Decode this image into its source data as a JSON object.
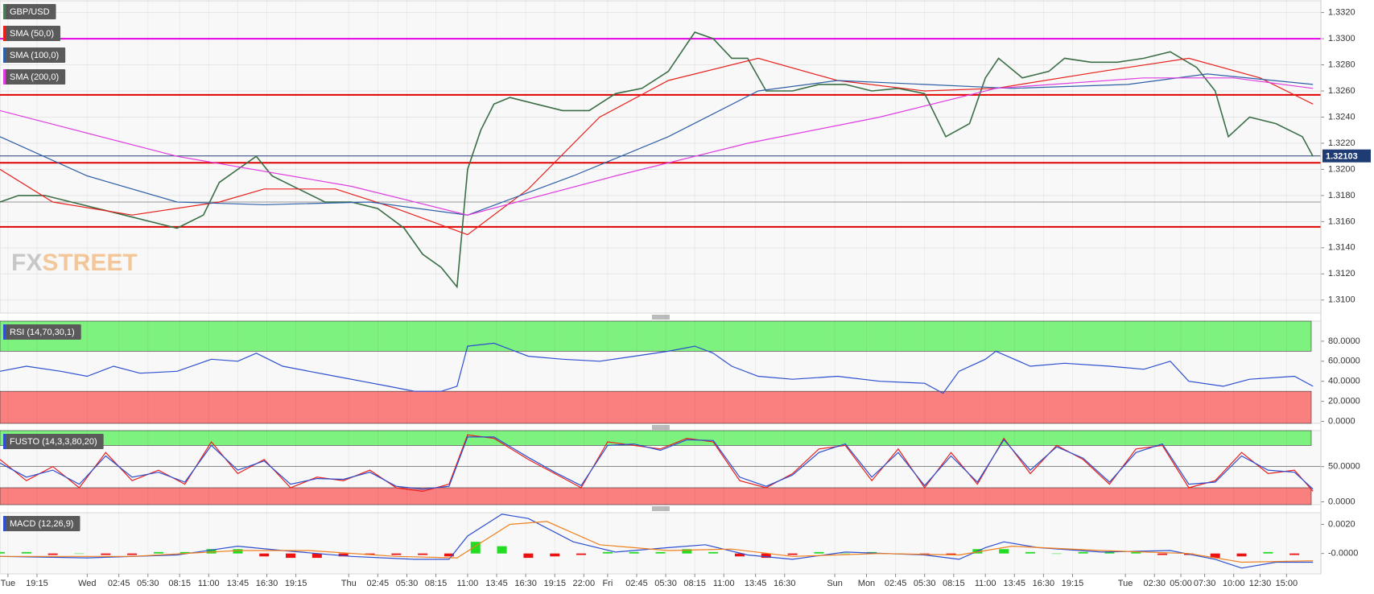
{
  "chart_data": [
    {
      "type": "line",
      "title": "GBP/USD",
      "brand": [
        "FX",
        "STREET"
      ],
      "xlim": [
        0,
        500
      ],
      "ylim": [
        1.309,
        1.3329
      ],
      "yticks": [
        {
          "value": 1.31,
          "label": "1.3100"
        },
        {
          "value": 1.312,
          "label": "1.3120"
        },
        {
          "value": 1.314,
          "label": "1.3140"
        },
        {
          "value": 1.316,
          "label": "1.3160"
        },
        {
          "value": 1.318,
          "label": "1.3180"
        },
        {
          "value": 1.32,
          "label": "1.3200"
        },
        {
          "value": 1.322,
          "label": "1.3220"
        },
        {
          "value": 1.324,
          "label": "1.3240"
        },
        {
          "value": 1.326,
          "label": "1.3260"
        },
        {
          "value": 1.328,
          "label": "1.3280"
        },
        {
          "value": 1.33,
          "label": "1.3300"
        },
        {
          "value": 1.332,
          "label": "1.3320"
        }
      ],
      "grid": true,
      "levels": [
        {
          "value": 1.33,
          "color": "#e600e6"
        },
        {
          "value": 1.3257,
          "color": "#e00000"
        },
        {
          "value": 1.3205,
          "color": "#e00000"
        },
        {
          "value": 1.3156,
          "color": "#e00000"
        },
        {
          "value": 1.3175,
          "color": "#999999"
        }
      ],
      "last": {
        "value": 1.32103,
        "label": "1.32103",
        "color": "#1f3b73"
      },
      "series": [
        {
          "color": "#3a6e46",
          "x": [
            0,
            7,
            17,
            27,
            37,
            47,
            57,
            67,
            77,
            83,
            90,
            97,
            103,
            113,
            123,
            133,
            143,
            153,
            160,
            167,
            173,
            177,
            182,
            187,
            193,
            203,
            213,
            223,
            233,
            243,
            253,
            263,
            270,
            277,
            283,
            290,
            300,
            310,
            320,
            330,
            340,
            350,
            358,
            367,
            373,
            378,
            387,
            397,
            403,
            413,
            423,
            433,
            443,
            453,
            460,
            465,
            473,
            483,
            493,
            497
          ],
          "values": [
            1.3175,
            1.318,
            1.318,
            1.3175,
            1.317,
            1.3165,
            1.316,
            1.3155,
            1.3165,
            1.319,
            1.32,
            1.321,
            1.3195,
            1.3185,
            1.3175,
            1.3175,
            1.317,
            1.3155,
            1.3135,
            1.3125,
            1.311,
            1.32,
            1.323,
            1.325,
            1.3255,
            1.325,
            1.3245,
            1.3245,
            1.3258,
            1.3262,
            1.3275,
            1.3305,
            1.33,
            1.3285,
            1.3285,
            1.326,
            1.326,
            1.3265,
            1.3265,
            1.326,
            1.3262,
            1.3258,
            1.3225,
            1.3235,
            1.327,
            1.3285,
            1.327,
            1.3275,
            1.3285,
            1.3282,
            1.3282,
            1.3285,
            1.329,
            1.3278,
            1.326,
            1.3225,
            1.324,
            1.3235,
            1.3225,
            1.321
          ]
        },
        {
          "name": "SMA (50,0)",
          "color": "#e8201c",
          "x": [
            0,
            20,
            50,
            83,
            100,
            127,
            150,
            177,
            200,
            227,
            253,
            287,
            317,
            350,
            377,
            417,
            450,
            477,
            497
          ],
          "values": [
            1.32,
            1.3175,
            1.3165,
            1.3175,
            1.3185,
            1.3185,
            1.317,
            1.315,
            1.3185,
            1.324,
            1.3268,
            1.3285,
            1.3268,
            1.326,
            1.3262,
            1.3275,
            1.3285,
            1.327,
            1.325
          ]
        },
        {
          "name": "SMA (100,0)",
          "color": "#2f5fa7",
          "x": [
            0,
            33,
            67,
            100,
            140,
            177,
            217,
            253,
            287,
            317,
            350,
            383,
            427,
            457,
            497
          ],
          "values": [
            1.3225,
            1.3195,
            1.3175,
            1.3173,
            1.3175,
            1.3165,
            1.3195,
            1.3225,
            1.326,
            1.3268,
            1.3265,
            1.3262,
            1.3265,
            1.3273,
            1.3265
          ]
        },
        {
          "name": "SMA (200,0)",
          "color": "#e03ce0",
          "x": [
            0,
            67,
            133,
            177,
            233,
            283,
            333,
            377,
            433,
            467,
            497
          ],
          "values": [
            1.3245,
            1.321,
            1.3187,
            1.3165,
            1.3195,
            1.322,
            1.324,
            1.3262,
            1.327,
            1.327,
            1.3262
          ]
        }
      ]
    },
    {
      "type": "line",
      "title": "RSI (14,70,30,1)",
      "xlim": [
        0,
        500
      ],
      "ylim": [
        -2,
        100
      ],
      "upper": 70,
      "lower": 30,
      "yticks": [
        {
          "value": 0,
          "label": "0.0000"
        },
        {
          "value": 20,
          "label": "20.0000"
        },
        {
          "value": 40,
          "label": "40.0000"
        },
        {
          "value": 60,
          "label": "60.0000"
        },
        {
          "value": 80,
          "label": "80.0000"
        }
      ],
      "series": [
        {
          "color": "#2d4fd0",
          "x": [
            0,
            10,
            23,
            33,
            43,
            53,
            67,
            80,
            90,
            97,
            107,
            117,
            127,
            137,
            147,
            157,
            167,
            173,
            177,
            187,
            200,
            213,
            227,
            240,
            253,
            263,
            270,
            277,
            287,
            300,
            317,
            333,
            350,
            357,
            363,
            373,
            377,
            390,
            403,
            420,
            433,
            443,
            450,
            463,
            473,
            490,
            497
          ],
          "values": [
            50,
            55,
            50,
            45,
            55,
            48,
            50,
            62,
            60,
            68,
            55,
            50,
            45,
            40,
            35,
            30,
            30,
            35,
            75,
            78,
            65,
            62,
            60,
            65,
            70,
            75,
            68,
            55,
            45,
            42,
            45,
            40,
            38,
            28,
            50,
            62,
            70,
            55,
            58,
            55,
            52,
            60,
            40,
            35,
            42,
            45,
            35
          ]
        }
      ]
    },
    {
      "type": "line",
      "title": "FUSTO (14,3,3,80,20)",
      "xlim": [
        0,
        500
      ],
      "ylim": [
        -4,
        101
      ],
      "upper": 80,
      "lower": 20,
      "midline": 50,
      "yticks": [
        {
          "value": 0,
          "label": "0.0000"
        },
        {
          "value": 50,
          "label": "50.0000"
        }
      ],
      "series": [
        {
          "color": "#e8201c",
          "x": [
            0,
            10,
            20,
            30,
            40,
            50,
            60,
            70,
            80,
            90,
            100,
            110,
            120,
            130,
            140,
            150,
            160,
            170,
            177,
            187,
            200,
            210,
            220,
            230,
            240,
            250,
            260,
            270,
            280,
            290,
            300,
            310,
            320,
            330,
            340,
            350,
            360,
            370,
            380,
            390,
            400,
            410,
            420,
            430,
            440,
            450,
            460,
            470,
            480,
            490,
            497
          ],
          "values": [
            60,
            30,
            50,
            20,
            70,
            30,
            45,
            25,
            85,
            40,
            60,
            20,
            35,
            30,
            45,
            20,
            15,
            25,
            95,
            90,
            60,
            40,
            20,
            85,
            80,
            75,
            90,
            85,
            30,
            20,
            40,
            75,
            80,
            30,
            75,
            20,
            70,
            25,
            90,
            40,
            80,
            60,
            25,
            75,
            80,
            20,
            30,
            70,
            40,
            45,
            15
          ]
        },
        {
          "color": "#2d4fd0",
          "x": [
            0,
            10,
            20,
            30,
            40,
            50,
            60,
            70,
            80,
            90,
            100,
            110,
            120,
            130,
            140,
            150,
            160,
            170,
            177,
            187,
            200,
            210,
            220,
            230,
            240,
            250,
            260,
            270,
            280,
            290,
            300,
            310,
            320,
            330,
            340,
            350,
            360,
            370,
            380,
            390,
            400,
            410,
            420,
            430,
            440,
            450,
            460,
            470,
            480,
            490,
            497
          ],
          "values": [
            55,
            35,
            45,
            25,
            65,
            35,
            42,
            28,
            80,
            45,
            58,
            25,
            33,
            32,
            42,
            22,
            18,
            22,
            92,
            92,
            63,
            42,
            23,
            80,
            82,
            73,
            88,
            87,
            35,
            22,
            38,
            70,
            82,
            35,
            70,
            23,
            65,
            28,
            88,
            45,
            78,
            62,
            28,
            70,
            82,
            25,
            28,
            65,
            45,
            42,
            18
          ]
        }
      ]
    },
    {
      "type": "line",
      "title": "MACD (12,26,9)",
      "xlim": [
        0,
        500
      ],
      "ylim": [
        -0.0014,
        0.0028
      ],
      "yticks": [
        {
          "value": 0,
          "label": "-0.0000"
        },
        {
          "value": 0.002,
          "label": "0.0020"
        }
      ],
      "xticks": [
        {
          "value": 3,
          "label": "Tue"
        },
        {
          "value": 14,
          "label": "19:15"
        },
        {
          "value": 33,
          "label": "Wed"
        },
        {
          "value": 45,
          "label": "02:45"
        },
        {
          "value": 56,
          "label": "05:30"
        },
        {
          "value": 68,
          "label": "08:15"
        },
        {
          "value": 79,
          "label": "11:00"
        },
        {
          "value": 90,
          "label": "13:45"
        },
        {
          "value": 101,
          "label": "16:30"
        },
        {
          "value": 112,
          "label": "19:15"
        },
        {
          "value": 132,
          "label": "Thu"
        },
        {
          "value": 143,
          "label": "02:45"
        },
        {
          "value": 154,
          "label": "05:30"
        },
        {
          "value": 165,
          "label": "08:15"
        },
        {
          "value": 177,
          "label": "11:00"
        },
        {
          "value": 188,
          "label": "13:45"
        },
        {
          "value": 199,
          "label": "16:30"
        },
        {
          "value": 210,
          "label": "19:15"
        },
        {
          "value": 221,
          "label": "22:00"
        },
        {
          "value": 230,
          "label": "Fri"
        },
        {
          "value": 241,
          "label": "02:45"
        },
        {
          "value": 252,
          "label": "05:30"
        },
        {
          "value": 263,
          "label": "08:15"
        },
        {
          "value": 274,
          "label": "11:00"
        },
        {
          "value": 286,
          "label": "13:45"
        },
        {
          "value": 297,
          "label": "16:30"
        },
        {
          "value": 316,
          "label": "Sun"
        },
        {
          "value": 328,
          "label": "Mon"
        },
        {
          "value": 339,
          "label": "02:45"
        },
        {
          "value": 350,
          "label": "05:30"
        },
        {
          "value": 361,
          "label": "08:15"
        },
        {
          "value": 373,
          "label": "11:00"
        },
        {
          "value": 384,
          "label": "13:45"
        },
        {
          "value": 395,
          "label": "16:30"
        },
        {
          "value": 406,
          "label": "19:15"
        },
        {
          "value": 426,
          "label": "Tue"
        },
        {
          "value": 437,
          "label": "02:30"
        },
        {
          "value": 447,
          "label": "05:00"
        },
        {
          "value": 456,
          "label": "07:30"
        },
        {
          "value": 467,
          "label": "10:00"
        },
        {
          "value": 477,
          "label": "12:30"
        },
        {
          "value": 487,
          "label": "15:00"
        }
      ],
      "series": [
        {
          "color": "#2d4fd0",
          "x": [
            0,
            33,
            67,
            90,
            107,
            133,
            157,
            170,
            177,
            190,
            200,
            217,
            233,
            253,
            267,
            283,
            300,
            320,
            350,
            363,
            373,
            380,
            393,
            417,
            443,
            460,
            470,
            483,
            497
          ],
          "values": [
            -0.0002,
            -0.0003,
            -0.0001,
            0.0005,
            0.0002,
            -0.0002,
            -0.0004,
            -0.0004,
            0.0012,
            0.0027,
            0.0024,
            0.0008,
            0.0001,
            0.0004,
            0.0006,
            -0.0001,
            -0.0004,
            0.0001,
            -0.0001,
            -0.0004,
            0.0004,
            0.0008,
            0.0004,
            0.0001,
            0.0002,
            -0.0004,
            -0.001,
            -0.0006,
            -0.0006
          ]
        },
        {
          "color": "#f08020",
          "x": [
            0,
            50,
            90,
            117,
            150,
            173,
            193,
            207,
            227,
            253,
            277,
            300,
            333,
            363,
            383,
            417,
            450,
            470,
            497
          ],
          "values": [
            -0.0002,
            -0.0002,
            0.0002,
            0.0002,
            -0.0002,
            -0.0003,
            0.002,
            0.0022,
            0.0006,
            0.0002,
            0.0003,
            -0.0002,
            0,
            -0.0001,
            0.0005,
            0.0002,
            0,
            -0.0006,
            -0.0005
          ]
        }
      ],
      "histogram": {
        "pos_color": "#22dd22",
        "neg_color": "#ee1111",
        "x": [
          0,
          10,
          20,
          30,
          40,
          50,
          60,
          70,
          80,
          90,
          100,
          110,
          120,
          130,
          140,
          150,
          160,
          170,
          180,
          190,
          200,
          210,
          220,
          230,
          240,
          250,
          260,
          270,
          280,
          290,
          300,
          310,
          320,
          330,
          340,
          350,
          360,
          370,
          380,
          390,
          400,
          410,
          420,
          430,
          440,
          450,
          460,
          470,
          480,
          490
        ],
        "values": [
          0.0001,
          0.0001,
          -0.0001,
          0,
          -0.0001,
          -0.0001,
          0.0001,
          0.0001,
          0.0003,
          0.0003,
          -0.0002,
          -0.0003,
          -0.0003,
          -0.0002,
          -0.0001,
          -0.0001,
          -0.0001,
          -0.0002,
          0.0008,
          0.0005,
          -0.0003,
          -0.0002,
          -0.0001,
          0.0001,
          0.0001,
          0.0001,
          0.0003,
          0.0001,
          -0.0002,
          -0.0003,
          -0.0001,
          0.0001,
          0,
          0.0001,
          0,
          -0.0001,
          -0.0001,
          0.0003,
          0.0003,
          0.0001,
          0,
          0.0001,
          0.0001,
          0.0001,
          -0.0001,
          -0.0001,
          -0.0003,
          -0.0002,
          0.0001,
          -0.0001
        ]
      }
    }
  ]
}
